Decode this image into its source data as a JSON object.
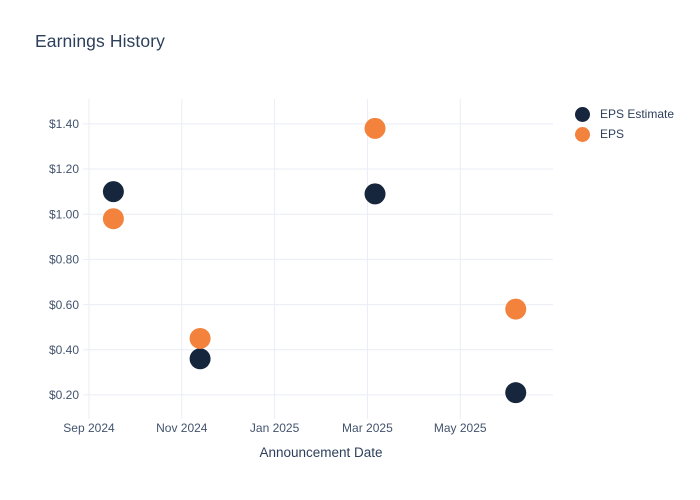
{
  "title": "Earnings History",
  "legend": {
    "items": [
      {
        "label": "EPS Estimate",
        "color": "#16263C"
      },
      {
        "label": "EPS",
        "color": "#F2823C"
      }
    ]
  },
  "colors": {
    "background": "#FFFFFF",
    "grid": "#E9EDF5",
    "title_text": "#2D3F5A",
    "axis_title_text": "#2D3F5A",
    "tick_text": "#43536D",
    "legend_text": "#2D3F5A",
    "eps_estimate_marker": "#16263C",
    "eps_marker": "#F2823C"
  },
  "chart_data": {
    "type": "scatter",
    "title": "Earnings History",
    "xlabel": "Announcement Date",
    "ylabel": "",
    "grid": true,
    "legend_position": "outside-top-right",
    "x_range": [
      "2024-09-01",
      "2025-07-01"
    ],
    "y_range": [
      0.12,
      1.51
    ],
    "x_ticks": [
      {
        "date": "2024-09-01",
        "label": "Sep 2024"
      },
      {
        "date": "2024-11-01",
        "label": "Nov 2024"
      },
      {
        "date": "2025-01-01",
        "label": "Jan 2025"
      },
      {
        "date": "2025-03-01",
        "label": "Mar 2025"
      },
      {
        "date": "2025-05-01",
        "label": "May 2025"
      }
    ],
    "y_ticks": [
      {
        "value": 0.2,
        "label": "$0.20"
      },
      {
        "value": 0.4,
        "label": "$0.40"
      },
      {
        "value": 0.6,
        "label": "$0.60"
      },
      {
        "value": 0.8,
        "label": "$0.80"
      },
      {
        "value": 1.0,
        "label": "$1.00"
      },
      {
        "value": 1.2,
        "label": "$1.20"
      },
      {
        "value": 1.4,
        "label": "$1.40"
      }
    ],
    "series": [
      {
        "name": "EPS Estimate",
        "color": "#16263C",
        "points": [
          {
            "date": "2024-09-17",
            "value": 1.1
          },
          {
            "date": "2024-11-13",
            "value": 0.36
          },
          {
            "date": "2025-03-06",
            "value": 1.09
          },
          {
            "date": "2025-06-07",
            "value": 0.21
          }
        ]
      },
      {
        "name": "EPS",
        "color": "#F2823C",
        "points": [
          {
            "date": "2024-09-17",
            "value": 0.98
          },
          {
            "date": "2024-11-13",
            "value": 0.45
          },
          {
            "date": "2025-03-06",
            "value": 1.38
          },
          {
            "date": "2025-06-07",
            "value": 0.58
          }
        ]
      }
    ]
  }
}
